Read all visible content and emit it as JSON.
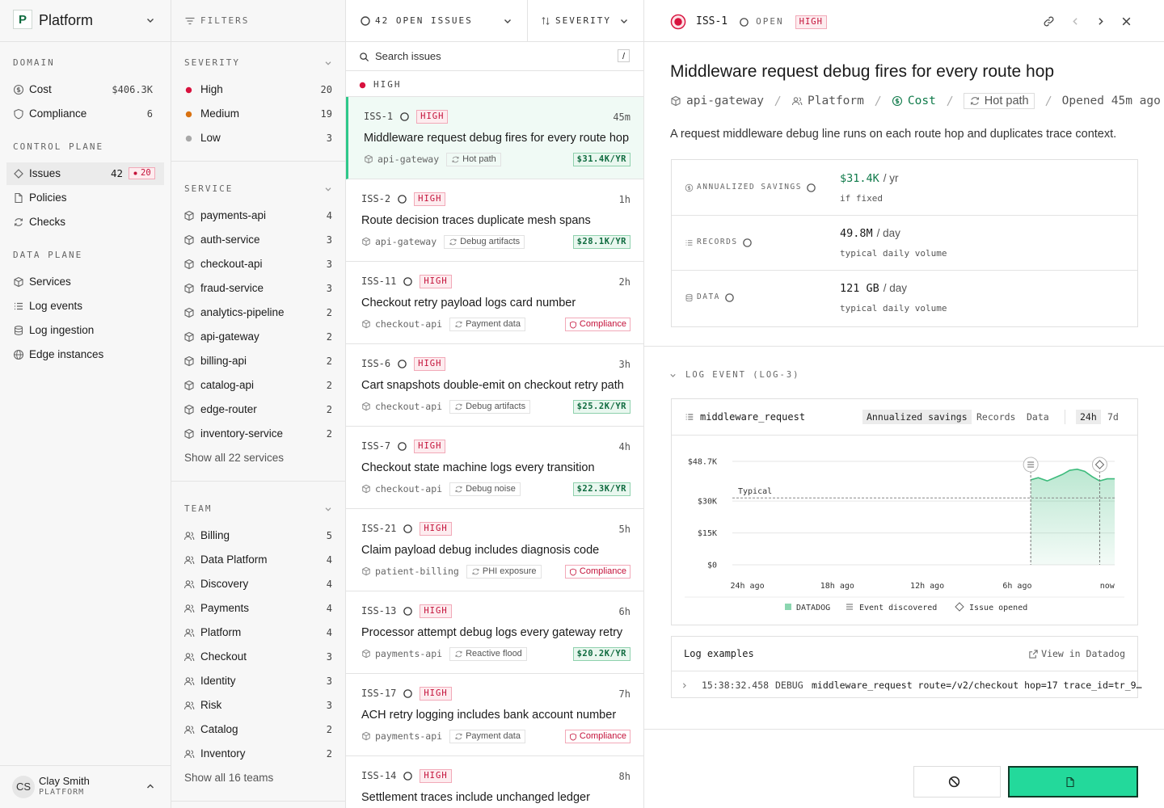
{
  "sidebar": {
    "org_initial": "P",
    "org": "Platform",
    "sections": [
      {
        "title": "DOMAIN",
        "items": [
          {
            "label": "Cost",
            "value": "$406.3K"
          },
          {
            "label": "Compliance",
            "value": "6"
          }
        ]
      },
      {
        "title": "CONTROL PLANE",
        "items": [
          {
            "label": "Issues",
            "value": "42",
            "badge": "20"
          },
          {
            "label": "Policies"
          },
          {
            "label": "Checks"
          }
        ]
      },
      {
        "title": "DATA PLANE",
        "items": [
          {
            "label": "Services"
          },
          {
            "label": "Log events"
          },
          {
            "label": "Log ingestion"
          },
          {
            "label": "Edge instances"
          }
        ]
      }
    ],
    "user": {
      "initials": "CS",
      "name": "Clay Smith",
      "org": "PLATFORM"
    }
  },
  "filters": {
    "title": "FILTERS",
    "groups": [
      {
        "title": "SEVERITY",
        "items": [
          {
            "label": "High",
            "count": "20"
          },
          {
            "label": "Medium",
            "count": "19"
          },
          {
            "label": "Low",
            "count": "3"
          }
        ]
      },
      {
        "title": "SERVICE",
        "items": [
          {
            "label": "payments-api",
            "count": "4"
          },
          {
            "label": "auth-service",
            "count": "3"
          },
          {
            "label": "checkout-api",
            "count": "3"
          },
          {
            "label": "fraud-service",
            "count": "3"
          },
          {
            "label": "analytics-pipeline",
            "count": "2"
          },
          {
            "label": "api-gateway",
            "count": "2"
          },
          {
            "label": "billing-api",
            "count": "2"
          },
          {
            "label": "catalog-api",
            "count": "2"
          },
          {
            "label": "edge-router",
            "count": "2"
          },
          {
            "label": "inventory-service",
            "count": "2"
          }
        ],
        "more": "Show all 22 services"
      },
      {
        "title": "TEAM",
        "items": [
          {
            "label": "Billing",
            "count": "5"
          },
          {
            "label": "Data Platform",
            "count": "4"
          },
          {
            "label": "Discovery",
            "count": "4"
          },
          {
            "label": "Payments",
            "count": "4"
          },
          {
            "label": "Platform",
            "count": "4"
          },
          {
            "label": "Checkout",
            "count": "3"
          },
          {
            "label": "Identity",
            "count": "3"
          },
          {
            "label": "Risk",
            "count": "3"
          },
          {
            "label": "Catalog",
            "count": "2"
          },
          {
            "label": "Inventory",
            "count": "2"
          }
        ],
        "more": "Show all 16 teams"
      }
    ]
  },
  "issues": {
    "count_label": "42 OPEN ISSUES",
    "sort": "SEVERITY",
    "search": "Search issues",
    "shortcut": "/",
    "group": "HIGH",
    "rows": [
      {
        "id": "ISS-1",
        "severity": "HIGH",
        "age": "45m",
        "title": "Middleware request debug fires for every route hop",
        "service": "api-gateway",
        "tag": "Hot path",
        "savings": "$31.4K/YR"
      },
      {
        "id": "ISS-2",
        "severity": "HIGH",
        "age": "1h",
        "title": "Route decision traces duplicate mesh spans",
        "service": "api-gateway",
        "tag": "Debug artifacts",
        "savings": "$28.1K/YR"
      },
      {
        "id": "ISS-11",
        "severity": "HIGH",
        "age": "2h",
        "title": "Checkout retry payload logs card number",
        "service": "checkout-api",
        "tag": "Payment data",
        "compliance": "Compliance"
      },
      {
        "id": "ISS-6",
        "severity": "HIGH",
        "age": "3h",
        "title": "Cart snapshots double-emit on checkout retry path",
        "service": "checkout-api",
        "tag": "Debug artifacts",
        "savings": "$25.2K/YR"
      },
      {
        "id": "ISS-7",
        "severity": "HIGH",
        "age": "4h",
        "title": "Checkout state machine logs every transition",
        "service": "checkout-api",
        "tag": "Debug noise",
        "savings": "$22.3K/YR"
      },
      {
        "id": "ISS-21",
        "severity": "HIGH",
        "age": "5h",
        "title": "Claim payload debug includes diagnosis code",
        "service": "patient-billing",
        "tag": "PHI exposure",
        "compliance": "Compliance"
      },
      {
        "id": "ISS-13",
        "severity": "HIGH",
        "age": "6h",
        "title": "Processor attempt debug logs every gateway retry",
        "service": "payments-api",
        "tag": "Reactive flood",
        "savings": "$20.2K/YR"
      },
      {
        "id": "ISS-17",
        "severity": "HIGH",
        "age": "7h",
        "title": "ACH retry logging includes bank account number",
        "service": "payments-api",
        "tag": "Payment data",
        "compliance": "Compliance"
      },
      {
        "id": "ISS-14",
        "severity": "HIGH",
        "age": "8h",
        "title": "Settlement traces include unchanged ledger"
      }
    ]
  },
  "detail": {
    "id": "ISS-1",
    "status": "OPEN",
    "severity": "HIGH",
    "title": "Middleware request debug fires for every route hop",
    "breadcrumb": {
      "service": "api-gateway",
      "team": "Platform",
      "domain": "Cost",
      "tag": "Hot path",
      "opened": "Opened 45m ago"
    },
    "description": "A request middleware debug line runs on each route hop and duplicates trace context.",
    "metrics": [
      {
        "label": "ANNUALIZED SAVINGS",
        "value": "$31.4K",
        "unit": "/ yr",
        "note": "if fixed"
      },
      {
        "label": "RECORDS",
        "value": "49.8M",
        "unit": "/ day",
        "note": "typical daily volume"
      },
      {
        "label": "DATA",
        "value": "121 GB",
        "unit": "/ day",
        "note": "typical daily volume"
      }
    ],
    "log_event_title": "LOG EVENT (LOG-3)",
    "event_name": "middleware_request",
    "tabs": [
      "Annualized savings",
      "Records",
      "Data"
    ],
    "ranges": [
      "24h",
      "7d"
    ],
    "chart": {
      "type": "area",
      "xlim": [
        -25,
        0.5
      ],
      "ylim": [
        0,
        48700
      ],
      "yticks": [
        {
          "value": 0,
          "label": "$0"
        },
        {
          "value": 15000,
          "label": "$15K"
        },
        {
          "value": 30000,
          "label": "$30K"
        },
        {
          "value": 48700,
          "label": "$48.7K"
        }
      ],
      "xticks": [
        {
          "value": -24,
          "label": "24h ago"
        },
        {
          "value": -18,
          "label": "18h ago"
        },
        {
          "value": -12,
          "label": "12h ago"
        },
        {
          "value": -6,
          "label": "6h ago"
        },
        {
          "value": 0,
          "label": "now"
        }
      ],
      "series": [
        {
          "name": "DATADOG",
          "color": "#3dbb7c",
          "x": [
            -5.1,
            -4.6,
            -4,
            -3.5,
            -3,
            -2.5,
            -2,
            -1.5,
            -1,
            -0.5,
            0,
            0.5
          ],
          "values": [
            40000,
            41000,
            39500,
            41000,
            42500,
            44500,
            45000,
            44000,
            41500,
            39500,
            40500,
            40500
          ]
        }
      ],
      "typical": {
        "label": "Typical",
        "value": 31500
      },
      "markers": [
        {
          "name": "Event discovered",
          "x": -5.1
        },
        {
          "name": "Issue opened",
          "x": -0.5
        }
      ]
    },
    "log_examples": {
      "title": "Log examples",
      "link": "View in Datadog",
      "rows": [
        {
          "time": "15:38:32.458",
          "level": "DEBUG",
          "message": "middleware_request route=/v2/checkout hop=17 trace_id=tr_9…"
        }
      ]
    },
    "actions": {
      "ignore": "Ignore",
      "deploy": "Deploy policy"
    }
  }
}
